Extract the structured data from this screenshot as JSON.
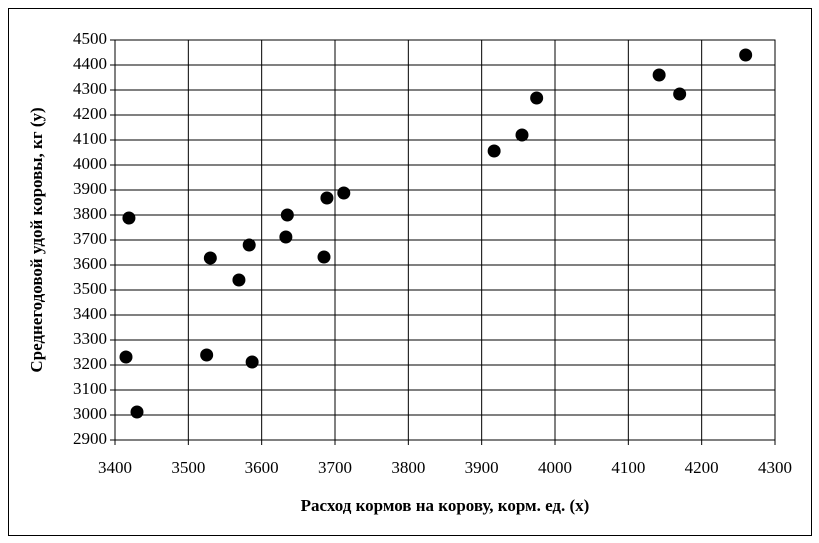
{
  "chart_data": {
    "type": "scatter",
    "xlabel": "Расход кормов на корову, корм. ед. (x)",
    "ylabel": "Среднегодовой удой коровы, кг (y)",
    "x": [
      3419,
      3415,
      3430,
      3530,
      3525,
      3569,
      3583,
      3587,
      3635,
      3633,
      3685,
      3689,
      3712,
      3917,
      3955,
      3975,
      4142,
      4170,
      4260
    ],
    "values": [
      3788,
      3232,
      3012,
      3628,
      3240,
      3540,
      3680,
      3212,
      3800,
      3712,
      3632,
      3868,
      3888,
      4056,
      4120,
      4268,
      4360,
      4284,
      4440
    ],
    "color": "#000000",
    "xlim": [
      3400,
      4300
    ],
    "xticks": [
      3400,
      3500,
      3600,
      3700,
      3800,
      3900,
      4000,
      4100,
      4200,
      4300
    ],
    "ylim": [
      2900,
      4500
    ],
    "yticks": [
      2900,
      3000,
      3100,
      3200,
      3300,
      3400,
      3500,
      3600,
      3700,
      3800,
      3900,
      4000,
      4100,
      4200,
      4300,
      4400,
      4500
    ],
    "grid": true
  }
}
